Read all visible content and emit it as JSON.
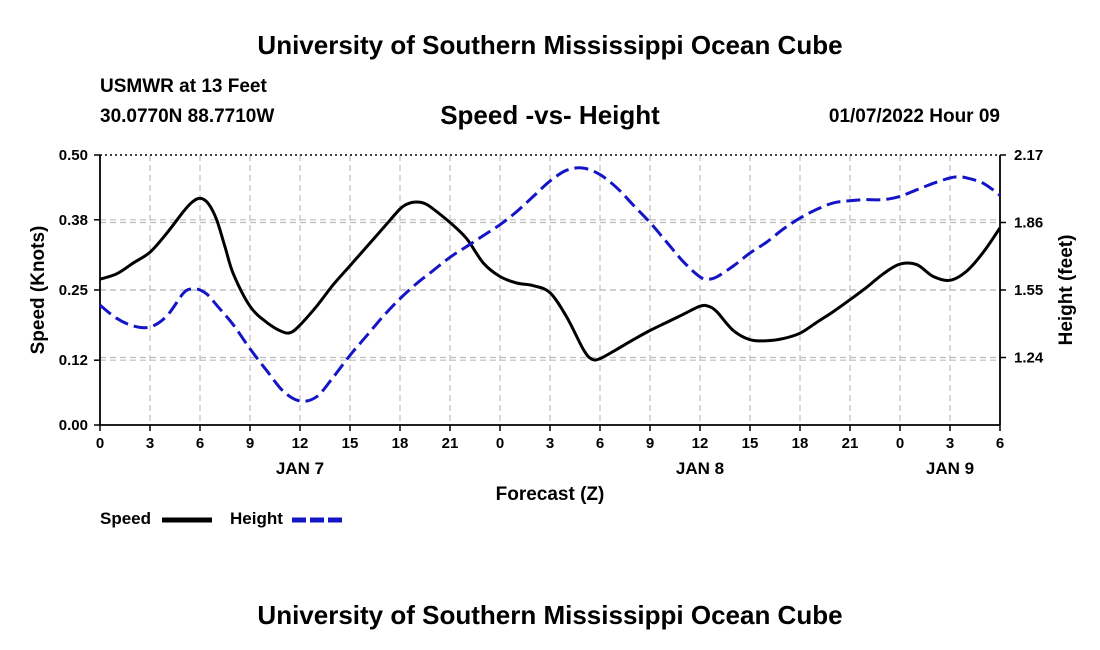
{
  "header": {
    "title": "University of Southern Mississippi Ocean Cube",
    "station": "USMWR at 13 Feet",
    "coords": "30.0770N  88.7710W",
    "chart_title": "Speed -vs- Height",
    "date": "01/07/2022 Hour 09"
  },
  "footer": {
    "title": "University of Southern Mississippi Ocean Cube"
  },
  "legend": {
    "speed_label": "Speed",
    "height_label": "Height"
  },
  "colors": {
    "speed": "#000000",
    "height": "#1515c8",
    "grid": "#bdbdbd"
  },
  "chart_data": {
    "type": "line",
    "title": "Speed -vs- Height",
    "xlabel": "Forecast (Z)",
    "ylabel": "Speed (Knots)",
    "y2label": "Height (feet)",
    "xlim": [
      0,
      54
    ],
    "x_ticks": [
      0,
      3,
      6,
      9,
      12,
      15,
      18,
      21,
      24,
      27,
      30,
      33,
      36,
      39,
      42,
      45,
      48,
      51,
      54
    ],
    "x_tick_labels": [
      "0",
      "3",
      "6",
      "9",
      "12",
      "15",
      "18",
      "21",
      "0",
      "3",
      "6",
      "9",
      "12",
      "15",
      "18",
      "21",
      "0",
      "3",
      "6"
    ],
    "day_labels": [
      {
        "x": 12,
        "label": "JAN 7"
      },
      {
        "x": 36,
        "label": "JAN 8"
      },
      {
        "x": 51,
        "label": "JAN 9"
      }
    ],
    "ylim": [
      0,
      0.5
    ],
    "y_ticks": [
      0.0,
      0.12,
      0.25,
      0.38,
      0.5
    ],
    "y_tick_labels": [
      "0.00",
      "0.12",
      "0.25",
      "0.38",
      "0.50"
    ],
    "y2lim": [
      0.93,
      2.17
    ],
    "y2_ticks": [
      1.24,
      1.55,
      1.86,
      2.17
    ],
    "y2_tick_labels": [
      "1.24",
      "1.55",
      "1.86",
      "2.17"
    ],
    "series": [
      {
        "name": "Speed",
        "axis": "left",
        "style": "solid",
        "x": [
          0,
          1,
          2,
          3,
          4,
          5,
          5.5,
          6,
          6.5,
          7,
          7.5,
          8,
          9,
          10,
          11,
          11.5,
          12,
          13,
          14,
          15,
          16,
          17,
          18,
          18.5,
          19,
          19.5,
          20,
          21,
          22,
          23,
          24,
          25,
          26,
          27,
          28,
          29,
          29.5,
          30,
          31,
          32,
          33,
          34,
          35,
          36,
          36.5,
          37,
          38,
          39,
          40,
          41,
          42,
          43,
          44,
          45,
          46,
          47,
          48,
          49,
          50,
          51,
          52,
          53,
          54
        ],
        "values": [
          0.27,
          0.28,
          0.3,
          0.32,
          0.355,
          0.395,
          0.412,
          0.42,
          0.41,
          0.38,
          0.33,
          0.28,
          0.22,
          0.19,
          0.172,
          0.172,
          0.185,
          0.22,
          0.26,
          0.295,
          0.33,
          0.365,
          0.4,
          0.41,
          0.413,
          0.41,
          0.4,
          0.375,
          0.345,
          0.3,
          0.275,
          0.263,
          0.258,
          0.245,
          0.2,
          0.14,
          0.122,
          0.123,
          0.14,
          0.158,
          0.175,
          0.19,
          0.205,
          0.22,
          0.22,
          0.21,
          0.175,
          0.158,
          0.156,
          0.16,
          0.17,
          0.19,
          0.21,
          0.232,
          0.255,
          0.28,
          0.298,
          0.297,
          0.275,
          0.268,
          0.285,
          0.32,
          0.365
        ]
      },
      {
        "name": "Height",
        "axis": "right",
        "style": "dashed",
        "x": [
          0,
          1,
          2,
          3,
          4,
          5,
          5.5,
          6,
          6.5,
          7,
          8,
          9,
          10,
          11,
          12,
          13,
          14,
          15,
          16,
          17,
          18,
          19,
          20,
          21,
          22,
          23,
          24,
          25,
          26,
          27,
          28,
          29,
          30,
          31,
          32,
          33,
          34,
          35,
          36,
          36.5,
          37,
          38,
          39,
          40,
          41,
          42,
          43,
          44,
          45,
          46,
          47,
          48,
          49,
          50,
          51,
          51.5,
          52,
          53,
          54
        ],
        "values": [
          1.48,
          1.42,
          1.385,
          1.38,
          1.43,
          1.535,
          1.555,
          1.55,
          1.525,
          1.48,
          1.39,
          1.28,
          1.18,
          1.085,
          1.04,
          1.06,
          1.15,
          1.25,
          1.34,
          1.43,
          1.51,
          1.58,
          1.64,
          1.7,
          1.75,
          1.8,
          1.85,
          1.91,
          1.98,
          2.05,
          2.1,
          2.11,
          2.08,
          2.02,
          1.94,
          1.86,
          1.77,
          1.68,
          1.61,
          1.6,
          1.61,
          1.66,
          1.72,
          1.77,
          1.83,
          1.88,
          1.92,
          1.95,
          1.96,
          1.965,
          1.965,
          1.98,
          2.01,
          2.04,
          2.065,
          2.07,
          2.065,
          2.04,
          1.985
        ]
      }
    ]
  }
}
